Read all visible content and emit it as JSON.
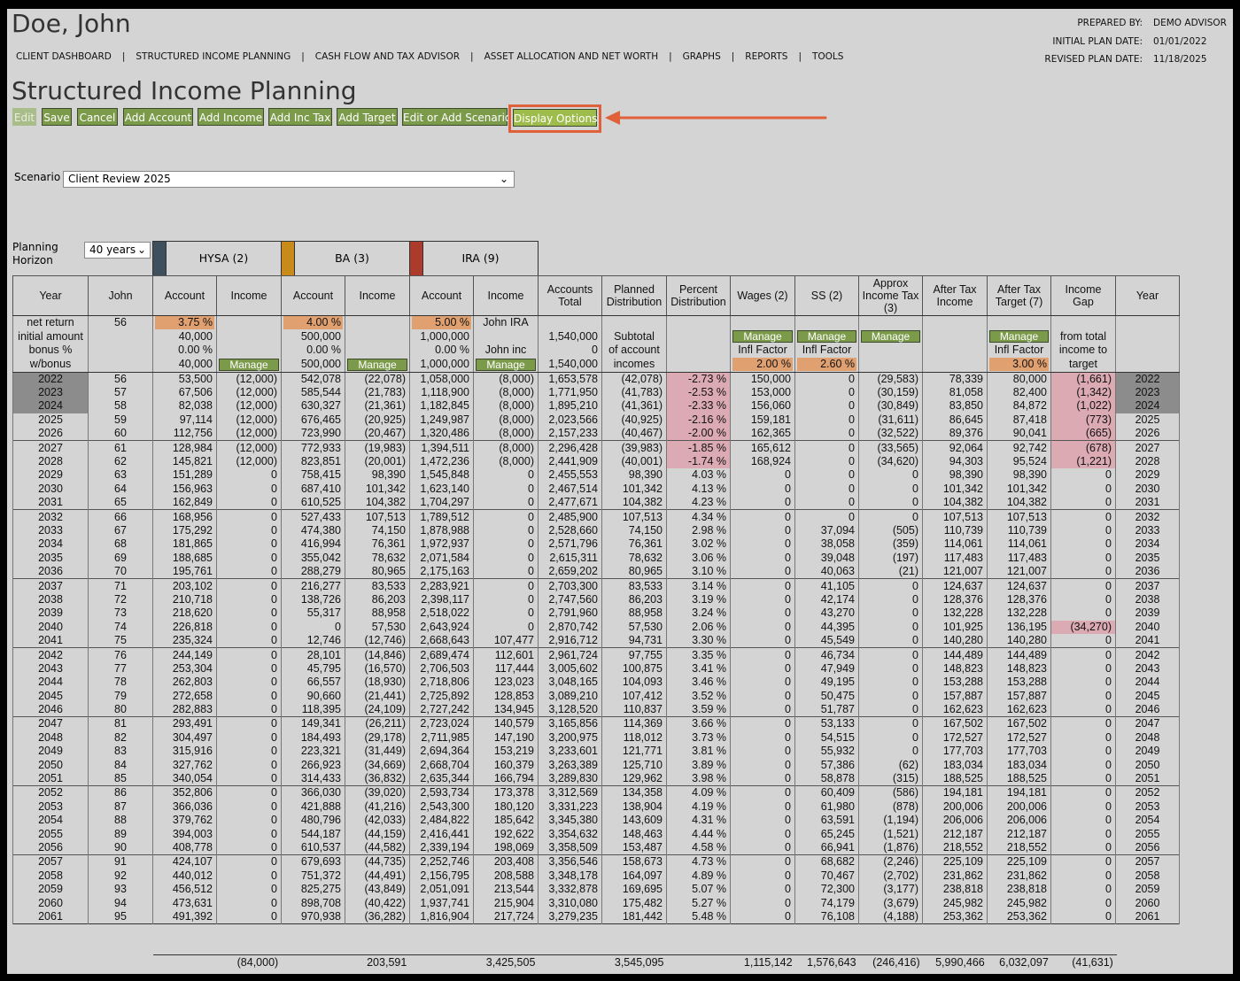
{
  "header": {
    "name": "Doe, John",
    "nav": [
      "CLIENT DASHBOARD",
      "STRUCTURED INCOME PLANNING",
      "CASH FLOW AND TAX ADVISOR",
      "ASSET ALLOCATION AND NET WORTH",
      "GRAPHS",
      "REPORTS",
      "TOOLS"
    ],
    "info": [
      {
        "label": "PREPARED BY:",
        "value": "DEMO ADVISOR"
      },
      {
        "label": "INITIAL PLAN DATE:",
        "value": "01/01/2022"
      },
      {
        "label": "REVISED PLAN DATE:",
        "value": "11/18/2025"
      }
    ]
  },
  "page": {
    "title": "Structured Income Planning",
    "buttons": [
      "Edit",
      "Save",
      "Cancel",
      "Add Account",
      "Add Income",
      "Add Inc Tax",
      "Add Target",
      "Edit or Add Scenario",
      "Display Options"
    ]
  },
  "scenario": {
    "label": "Scenario",
    "value": "Client Review 2025"
  },
  "planning_horizon": {
    "label": "Planning Horizon",
    "value": "40 years"
  },
  "accounts": [
    {
      "name": "HYSA (2)",
      "color": "#3e4f5e"
    },
    {
      "name": "BA (3)",
      "color": "#c98a1c"
    },
    {
      "name": "IRA (9)",
      "color": "#ad3b2c"
    }
  ],
  "table": {
    "columns": [
      "Year",
      "John",
      "Account",
      "Income",
      "Account",
      "Income",
      "Account",
      "Income",
      "Accounts Total",
      "Planned Distribution",
      "Percent Distribution",
      "Wages (2)",
      "SS (2)",
      "Approx Income Tax (3)",
      "After Tax Income",
      "After Tax Target (7)",
      "Income Gap",
      "Year"
    ],
    "settings": [
      [
        "net return",
        "56",
        "3.75 %",
        null,
        "4.00 %",
        null,
        "5.00 %",
        "John IRA",
        null,
        null,
        null,
        null,
        null,
        null,
        null,
        null,
        null
      ],
      [
        "initial amount",
        null,
        "40,000",
        null,
        "500,000",
        null,
        "1,000,000",
        null,
        "1,540,000",
        "Subtotal",
        null,
        "Manage",
        "Manage",
        "Manage",
        null,
        "Manage",
        "from total"
      ],
      [
        "bonus %",
        null,
        "0.00 %",
        null,
        "0.00 %",
        null,
        "0.00 %",
        "John inc",
        "0",
        "of account",
        null,
        "Infl Factor",
        "Infl Factor",
        null,
        null,
        "Infl Factor",
        "income to"
      ],
      [
        "w/bonus",
        null,
        "40,000",
        "Manage",
        "500,000",
        "Manage",
        "1,000,000",
        "Manage",
        "1,540,000",
        "incomes",
        null,
        "2.00 %",
        "2.60 %",
        null,
        null,
        "3.00 %",
        "target"
      ]
    ],
    "rows": [
      [
        "2022",
        "56",
        "53,500",
        "(12,000)",
        "542,078",
        "(22,078)",
        "1,058,000",
        "(8,000)",
        "1,653,578",
        "(42,078)",
        "-2.73 %",
        "150,000",
        "0",
        "(29,583)",
        "78,339",
        "80,000",
        "(1,661)"
      ],
      [
        "2023",
        "57",
        "67,506",
        "(12,000)",
        "585,544",
        "(21,783)",
        "1,118,900",
        "(8,000)",
        "1,771,950",
        "(41,783)",
        "-2.53 %",
        "153,000",
        "0",
        "(30,159)",
        "81,058",
        "82,400",
        "(1,342)"
      ],
      [
        "2024",
        "58",
        "82,038",
        "(12,000)",
        "630,327",
        "(21,361)",
        "1,182,845",
        "(8,000)",
        "1,895,210",
        "(41,361)",
        "-2.33 %",
        "156,060",
        "0",
        "(30,849)",
        "83,850",
        "84,872",
        "(1,022)"
      ],
      [
        "2025",
        "59",
        "97,114",
        "(12,000)",
        "676,465",
        "(20,925)",
        "1,249,987",
        "(8,000)",
        "2,023,566",
        "(40,925)",
        "-2.16 %",
        "159,181",
        "0",
        "(31,611)",
        "86,645",
        "87,418",
        "(773)"
      ],
      [
        "2026",
        "60",
        "112,756",
        "(12,000)",
        "723,990",
        "(20,467)",
        "1,320,486",
        "(8,000)",
        "2,157,233",
        "(40,467)",
        "-2.00 %",
        "162,365",
        "0",
        "(32,522)",
        "89,376",
        "90,041",
        "(665)"
      ],
      [
        "2027",
        "61",
        "128,984",
        "(12,000)",
        "772,933",
        "(19,983)",
        "1,394,511",
        "(8,000)",
        "2,296,428",
        "(39,983)",
        "-1.85 %",
        "165,612",
        "0",
        "(33,565)",
        "92,064",
        "92,742",
        "(678)"
      ],
      [
        "2028",
        "62",
        "145,821",
        "(12,000)",
        "823,851",
        "(20,001)",
        "1,472,236",
        "(8,000)",
        "2,441,909",
        "(40,001)",
        "-1.74 %",
        "168,924",
        "0",
        "(34,620)",
        "94,303",
        "95,524",
        "(1,221)"
      ],
      [
        "2029",
        "63",
        "151,289",
        "0",
        "758,415",
        "98,390",
        "1,545,848",
        "0",
        "2,455,553",
        "98,390",
        "4.03 %",
        "0",
        "0",
        "0",
        "98,390",
        "98,390",
        "0"
      ],
      [
        "2030",
        "64",
        "156,963",
        "0",
        "687,410",
        "101,342",
        "1,623,140",
        "0",
        "2,467,514",
        "101,342",
        "4.13 %",
        "0",
        "0",
        "0",
        "101,342",
        "101,342",
        "0"
      ],
      [
        "2031",
        "65",
        "162,849",
        "0",
        "610,525",
        "104,382",
        "1,704,297",
        "0",
        "2,477,671",
        "104,382",
        "4.23 %",
        "0",
        "0",
        "0",
        "104,382",
        "104,382",
        "0"
      ],
      [
        "2032",
        "66",
        "168,956",
        "0",
        "527,433",
        "107,513",
        "1,789,512",
        "0",
        "2,485,900",
        "107,513",
        "4.34 %",
        "0",
        "0",
        "0",
        "107,513",
        "107,513",
        "0"
      ],
      [
        "2033",
        "67",
        "175,292",
        "0",
        "474,380",
        "74,150",
        "1,878,988",
        "0",
        "2,528,660",
        "74,150",
        "2.98 %",
        "0",
        "37,094",
        "(505)",
        "110,739",
        "110,739",
        "0"
      ],
      [
        "2034",
        "68",
        "181,865",
        "0",
        "416,994",
        "76,361",
        "1,972,937",
        "0",
        "2,571,796",
        "76,361",
        "3.02 %",
        "0",
        "38,058",
        "(359)",
        "114,061",
        "114,061",
        "0"
      ],
      [
        "2035",
        "69",
        "188,685",
        "0",
        "355,042",
        "78,632",
        "2,071,584",
        "0",
        "2,615,311",
        "78,632",
        "3.06 %",
        "0",
        "39,048",
        "(197)",
        "117,483",
        "117,483",
        "0"
      ],
      [
        "2036",
        "70",
        "195,761",
        "0",
        "288,279",
        "80,965",
        "2,175,163",
        "0",
        "2,659,202",
        "80,965",
        "3.10 %",
        "0",
        "40,063",
        "(21)",
        "121,007",
        "121,007",
        "0"
      ],
      [
        "2037",
        "71",
        "203,102",
        "0",
        "216,277",
        "83,533",
        "2,283,921",
        "0",
        "2,703,300",
        "83,533",
        "3.14 %",
        "0",
        "41,105",
        "0",
        "124,637",
        "124,637",
        "0"
      ],
      [
        "2038",
        "72",
        "210,718",
        "0",
        "138,726",
        "86,203",
        "2,398,117",
        "0",
        "2,747,560",
        "86,203",
        "3.19 %",
        "0",
        "42,174",
        "0",
        "128,376",
        "128,376",
        "0"
      ],
      [
        "2039",
        "73",
        "218,620",
        "0",
        "55,317",
        "88,958",
        "2,518,022",
        "0",
        "2,791,960",
        "88,958",
        "3.24 %",
        "0",
        "43,270",
        "0",
        "132,228",
        "132,228",
        "0"
      ],
      [
        "2040",
        "74",
        "226,818",
        "0",
        "0",
        "57,530",
        "2,643,924",
        "0",
        "2,870,742",
        "57,530",
        "2.06 %",
        "0",
        "44,395",
        "0",
        "101,925",
        "136,195",
        "(34,270)"
      ],
      [
        "2041",
        "75",
        "235,324",
        "0",
        "12,746",
        "(12,746)",
        "2,668,643",
        "107,477",
        "2,916,712",
        "94,731",
        "3.30 %",
        "0",
        "45,549",
        "0",
        "140,280",
        "140,280",
        "0"
      ],
      [
        "2042",
        "76",
        "244,149",
        "0",
        "28,101",
        "(14,846)",
        "2,689,474",
        "112,601",
        "2,961,724",
        "97,755",
        "3.35 %",
        "0",
        "46,734",
        "0",
        "144,489",
        "144,489",
        "0"
      ],
      [
        "2043",
        "77",
        "253,304",
        "0",
        "45,795",
        "(16,570)",
        "2,706,503",
        "117,444",
        "3,005,602",
        "100,875",
        "3.41 %",
        "0",
        "47,949",
        "0",
        "148,823",
        "148,823",
        "0"
      ],
      [
        "2044",
        "78",
        "262,803",
        "0",
        "66,557",
        "(18,930)",
        "2,718,806",
        "123,023",
        "3,048,165",
        "104,093",
        "3.46 %",
        "0",
        "49,195",
        "0",
        "153,288",
        "153,288",
        "0"
      ],
      [
        "2045",
        "79",
        "272,658",
        "0",
        "90,660",
        "(21,441)",
        "2,725,892",
        "128,853",
        "3,089,210",
        "107,412",
        "3.52 %",
        "0",
        "50,475",
        "0",
        "157,887",
        "157,887",
        "0"
      ],
      [
        "2046",
        "80",
        "282,883",
        "0",
        "118,395",
        "(24,109)",
        "2,727,242",
        "134,945",
        "3,128,520",
        "110,837",
        "3.59 %",
        "0",
        "51,787",
        "0",
        "162,623",
        "162,623",
        "0"
      ],
      [
        "2047",
        "81",
        "293,491",
        "0",
        "149,341",
        "(26,211)",
        "2,723,024",
        "140,579",
        "3,165,856",
        "114,369",
        "3.66 %",
        "0",
        "53,133",
        "0",
        "167,502",
        "167,502",
        "0"
      ],
      [
        "2048",
        "82",
        "304,497",
        "0",
        "184,493",
        "(29,178)",
        "2,711,985",
        "147,190",
        "3,200,975",
        "118,012",
        "3.73 %",
        "0",
        "54,515",
        "0",
        "172,527",
        "172,527",
        "0"
      ],
      [
        "2049",
        "83",
        "315,916",
        "0",
        "223,321",
        "(31,449)",
        "2,694,364",
        "153,219",
        "3,233,601",
        "121,771",
        "3.81 %",
        "0",
        "55,932",
        "0",
        "177,703",
        "177,703",
        "0"
      ],
      [
        "2050",
        "84",
        "327,762",
        "0",
        "266,923",
        "(34,669)",
        "2,668,704",
        "160,379",
        "3,263,389",
        "125,710",
        "3.89 %",
        "0",
        "57,386",
        "(62)",
        "183,034",
        "183,034",
        "0"
      ],
      [
        "2051",
        "85",
        "340,054",
        "0",
        "314,433",
        "(36,832)",
        "2,635,344",
        "166,794",
        "3,289,830",
        "129,962",
        "3.98 %",
        "0",
        "58,878",
        "(315)",
        "188,525",
        "188,525",
        "0"
      ],
      [
        "2052",
        "86",
        "352,806",
        "0",
        "366,030",
        "(39,020)",
        "2,593,734",
        "173,378",
        "3,312,569",
        "134,358",
        "4.09 %",
        "0",
        "60,409",
        "(586)",
        "194,181",
        "194,181",
        "0"
      ],
      [
        "2053",
        "87",
        "366,036",
        "0",
        "421,888",
        "(41,216)",
        "2,543,300",
        "180,120",
        "3,331,223",
        "138,904",
        "4.19 %",
        "0",
        "61,980",
        "(878)",
        "200,006",
        "200,006",
        "0"
      ],
      [
        "2054",
        "88",
        "379,762",
        "0",
        "480,796",
        "(42,033)",
        "2,484,822",
        "185,642",
        "3,345,380",
        "143,609",
        "4.31 %",
        "0",
        "63,591",
        "(1,194)",
        "206,006",
        "206,006",
        "0"
      ],
      [
        "2055",
        "89",
        "394,003",
        "0",
        "544,187",
        "(44,159)",
        "2,416,441",
        "192,622",
        "3,354,632",
        "148,463",
        "4.44 %",
        "0",
        "65,245",
        "(1,521)",
        "212,187",
        "212,187",
        "0"
      ],
      [
        "2056",
        "90",
        "408,778",
        "0",
        "610,537",
        "(44,582)",
        "2,339,194",
        "198,069",
        "3,358,509",
        "153,487",
        "4.58 %",
        "0",
        "66,941",
        "(1,876)",
        "218,552",
        "218,552",
        "0"
      ],
      [
        "2057",
        "91",
        "424,107",
        "0",
        "679,693",
        "(44,735)",
        "2,252,746",
        "203,408",
        "3,356,546",
        "158,673",
        "4.73 %",
        "0",
        "68,682",
        "(2,246)",
        "225,109",
        "225,109",
        "0"
      ],
      [
        "2058",
        "92",
        "440,012",
        "0",
        "751,372",
        "(44,491)",
        "2,156,795",
        "208,588",
        "3,348,178",
        "164,097",
        "4.89 %",
        "0",
        "70,467",
        "(2,702)",
        "231,862",
        "231,862",
        "0"
      ],
      [
        "2059",
        "93",
        "456,512",
        "0",
        "825,275",
        "(43,849)",
        "2,051,091",
        "213,544",
        "3,332,878",
        "169,695",
        "5.07 %",
        "0",
        "72,300",
        "(3,177)",
        "238,818",
        "238,818",
        "0"
      ],
      [
        "2060",
        "94",
        "473,631",
        "0",
        "898,708",
        "(40,422)",
        "1,937,741",
        "215,904",
        "3,310,080",
        "175,482",
        "5.27 %",
        "0",
        "74,179",
        "(3,679)",
        "245,982",
        "245,982",
        "0"
      ],
      [
        "2061",
        "95",
        "491,392",
        "0",
        "970,938",
        "(36,282)",
        "1,816,904",
        "217,724",
        "3,279,235",
        "181,442",
        "5.48 %",
        "0",
        "76,108",
        "(4,188)",
        "253,362",
        "253,362",
        "0"
      ]
    ],
    "totals": [
      null,
      null,
      null,
      "(84,000)",
      null,
      "203,591",
      null,
      "3,425,505",
      null,
      "3,545,095",
      null,
      "1,115,142",
      "1,576,643",
      "(246,416)",
      "5,990,466",
      "6,032,097",
      "(41,631)"
    ]
  }
}
